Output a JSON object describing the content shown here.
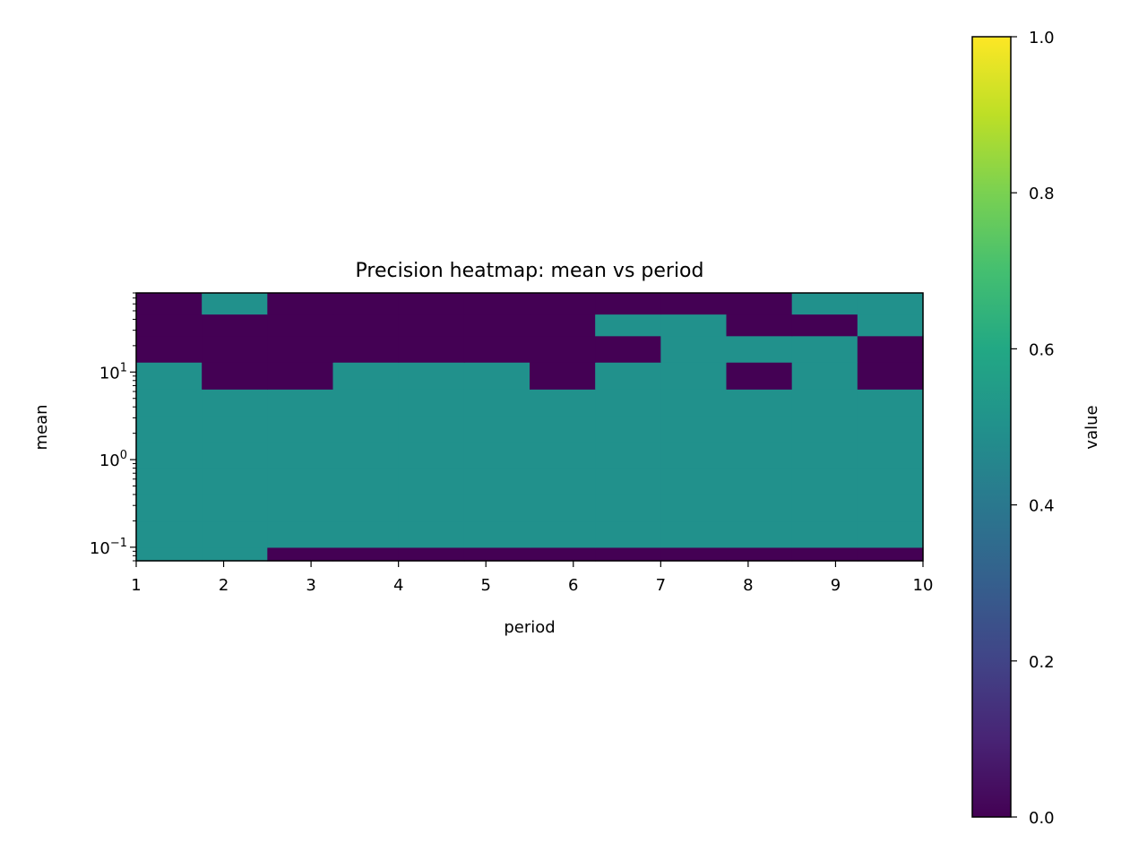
{
  "chart_data": {
    "type": "heatmap",
    "title": "Precision heatmap: mean vs period",
    "xlabel": "period",
    "ylabel": "mean",
    "colorbar_label": "value",
    "xlim": [
      1,
      10
    ],
    "ylim": [
      0.07,
      80
    ],
    "y_scale": "log",
    "x_ticks": [
      1,
      2,
      3,
      4,
      5,
      6,
      7,
      8,
      9,
      10
    ],
    "y_major_ticks": [
      {
        "value": 0.1,
        "base": "10",
        "exp": "−1"
      },
      {
        "value": 1,
        "base": "10",
        "exp": "0"
      },
      {
        "value": 10,
        "base": "10",
        "exp": "1"
      }
    ],
    "colorbar_ticks": [
      "0.0",
      "0.2",
      "0.4",
      "0.6",
      "0.8",
      "1.0"
    ],
    "colorbar_range": [
      0,
      1
    ],
    "colormap": "viridis",
    "colors": {
      "value_0_0": "#440154",
      "value_0_5": "#21918c",
      "value_1_0": "#fde725"
    },
    "period_bins": [
      1.0,
      1.75,
      2.5,
      3.25,
      4.0,
      4.75,
      5.5,
      6.25,
      7.0,
      7.75,
      8.5,
      9.25,
      10.0
    ],
    "mean_bin_edges": [
      0.07,
      0.1,
      0.2,
      0.4,
      0.8,
      1.6,
      3.2,
      6.4,
      13.0,
      26.0,
      46.0,
      80.0
    ],
    "values": [
      [
        0.5,
        0.5,
        0,
        0,
        0,
        0,
        0,
        0,
        0,
        0,
        0,
        0
      ],
      [
        0.5,
        0.5,
        0.5,
        0.5,
        0.5,
        0.5,
        0.5,
        0.5,
        0.5,
        0.5,
        0.5,
        0.5
      ],
      [
        0.5,
        0.5,
        0.5,
        0.5,
        0.5,
        0.5,
        0.5,
        0.5,
        0.5,
        0.5,
        0.5,
        0.5
      ],
      [
        0.5,
        0.5,
        0.5,
        0.5,
        0.5,
        0.5,
        0.5,
        0.5,
        0.5,
        0.5,
        0.5,
        0.5
      ],
      [
        0.5,
        0.5,
        0.5,
        0.5,
        0.5,
        0.5,
        0.5,
        0.5,
        0.5,
        0.5,
        0.5,
        0.5
      ],
      [
        0.5,
        0.5,
        0.5,
        0.5,
        0.5,
        0.5,
        0.5,
        0.5,
        0.5,
        0.5,
        0.5,
        0.5
      ],
      [
        0.5,
        0.5,
        0.5,
        0.5,
        0.5,
        0.5,
        0.5,
        0.5,
        0.5,
        0.5,
        0.5,
        0.5
      ],
      [
        0.5,
        0,
        0,
        0.5,
        0.5,
        0.5,
        0,
        0.5,
        0.5,
        0,
        0.5,
        0
      ],
      [
        0,
        0,
        0,
        0,
        0,
        0,
        0,
        0,
        0.5,
        0.5,
        0.5,
        0
      ],
      [
        0,
        0,
        0,
        0,
        0,
        0,
        0,
        0.5,
        0.5,
        0,
        0,
        0.5
      ],
      [
        0,
        0.5,
        0,
        0,
        0,
        0,
        0,
        0,
        0,
        0,
        0.5,
        0.5
      ]
    ]
  }
}
